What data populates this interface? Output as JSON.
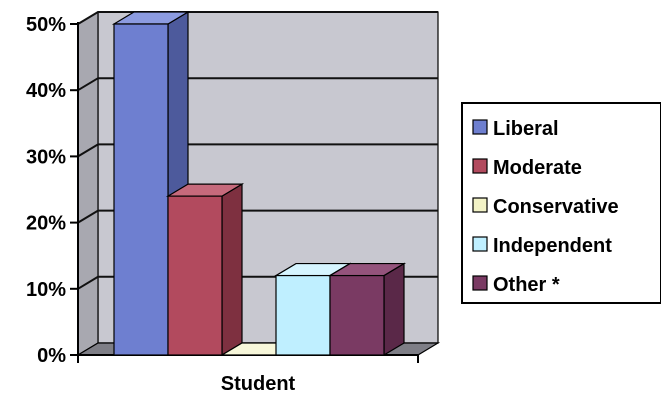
{
  "chart_data": {
    "type": "bar",
    "categories": [
      "Student"
    ],
    "series": [
      {
        "name": "Liberal",
        "values": [
          50
        ],
        "color": "#6E7FD0",
        "side_color": "#4D5A9C",
        "top_color": "#8C9BE0"
      },
      {
        "name": "Moderate",
        "values": [
          24
        ],
        "color": "#B24A5E",
        "side_color": "#7E3040",
        "top_color": "#C66A7C"
      },
      {
        "name": "Conservative",
        "values": [
          0
        ],
        "color": "#F2F2C6",
        "side_color": "#C8C89E",
        "top_color": "#F7F7DA"
      },
      {
        "name": "Independent",
        "values": [
          12
        ],
        "color": "#BFEFFF",
        "side_color": "#8FC6DA",
        "top_color": "#D6F5FF"
      },
      {
        "name": "Other *",
        "values": [
          12
        ],
        "color": "#7A3A63",
        "side_color": "#5A2848",
        "top_color": "#94537C"
      }
    ],
    "y_ticks": [
      "0%",
      "10%",
      "20%",
      "30%",
      "40%",
      "50%"
    ],
    "ylim": [
      0,
      50
    ],
    "grid": true,
    "legend_position": "right",
    "plot_background": "#C8C8D0"
  }
}
